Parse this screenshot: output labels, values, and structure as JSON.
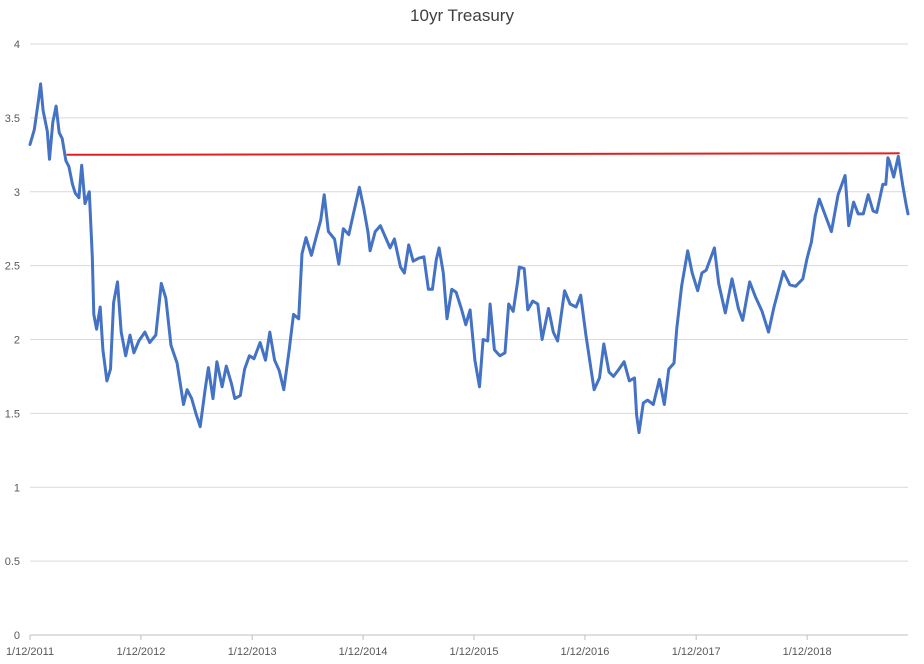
{
  "chart_data": {
    "type": "line",
    "title": "10yr Treasury",
    "xlabel": "",
    "ylabel": "",
    "x_ticks": [
      "1/12/2011",
      "1/12/2012",
      "1/12/2013",
      "1/12/2014",
      "1/12/2015",
      "1/12/2016",
      "1/12/2017",
      "1/12/2018"
    ],
    "y_ticks": [
      "0",
      "0.5",
      "1",
      "1.5",
      "2",
      "2.5",
      "3",
      "3.5",
      "4"
    ],
    "ylim": [
      0,
      4
    ],
    "xlim": [
      "2011-01-12",
      "2018-12-10"
    ],
    "grid": "horizontal",
    "legend": "none",
    "series": [
      {
        "color": "#4472C4",
        "points": [
          [
            "2011-01-12",
            3.32
          ],
          [
            "2011-01-26",
            3.42
          ],
          [
            "2011-02-09",
            3.62
          ],
          [
            "2011-02-16",
            3.73
          ],
          [
            "2011-02-24",
            3.55
          ],
          [
            "2011-03-10",
            3.41
          ],
          [
            "2011-03-17",
            3.22
          ],
          [
            "2011-03-28",
            3.47
          ],
          [
            "2011-04-08",
            3.58
          ],
          [
            "2011-04-18",
            3.4
          ],
          [
            "2011-04-28",
            3.36
          ],
          [
            "2011-05-10",
            3.21
          ],
          [
            "2011-05-20",
            3.17
          ],
          [
            "2011-06-01",
            3.05
          ],
          [
            "2011-06-10",
            2.99
          ],
          [
            "2011-06-22",
            2.96
          ],
          [
            "2011-07-01",
            3.18
          ],
          [
            "2011-07-12",
            2.92
          ],
          [
            "2011-07-26",
            3.0
          ],
          [
            "2011-08-05",
            2.56
          ],
          [
            "2011-08-10",
            2.17
          ],
          [
            "2011-08-19",
            2.07
          ],
          [
            "2011-08-31",
            2.22
          ],
          [
            "2011-09-09",
            1.93
          ],
          [
            "2011-09-22",
            1.72
          ],
          [
            "2011-10-04",
            1.8
          ],
          [
            "2011-10-14",
            2.25
          ],
          [
            "2011-10-27",
            2.39
          ],
          [
            "2011-11-08",
            2.05
          ],
          [
            "2011-11-23",
            1.89
          ],
          [
            "2011-12-07",
            2.03
          ],
          [
            "2011-12-20",
            1.91
          ],
          [
            "2012-01-05",
            1.99
          ],
          [
            "2012-01-25",
            2.05
          ],
          [
            "2012-02-10",
            1.98
          ],
          [
            "2012-03-01",
            2.03
          ],
          [
            "2012-03-19",
            2.38
          ],
          [
            "2012-04-03",
            2.28
          ],
          [
            "2012-04-20",
            1.96
          ],
          [
            "2012-05-10",
            1.84
          ],
          [
            "2012-05-31",
            1.56
          ],
          [
            "2012-06-12",
            1.66
          ],
          [
            "2012-06-27",
            1.6
          ],
          [
            "2012-07-11",
            1.5
          ],
          [
            "2012-07-25",
            1.41
          ],
          [
            "2012-08-10",
            1.66
          ],
          [
            "2012-08-21",
            1.81
          ],
          [
            "2012-09-05",
            1.6
          ],
          [
            "2012-09-18",
            1.85
          ],
          [
            "2012-10-05",
            1.68
          ],
          [
            "2012-10-19",
            1.82
          ],
          [
            "2012-11-05",
            1.7
          ],
          [
            "2012-11-16",
            1.6
          ],
          [
            "2012-12-04",
            1.62
          ],
          [
            "2012-12-18",
            1.8
          ],
          [
            "2013-01-03",
            1.89
          ],
          [
            "2013-01-18",
            1.87
          ],
          [
            "2013-02-07",
            1.98
          ],
          [
            "2013-02-25",
            1.86
          ],
          [
            "2013-03-11",
            2.05
          ],
          [
            "2013-03-27",
            1.86
          ],
          [
            "2013-04-11",
            1.79
          ],
          [
            "2013-04-26",
            1.66
          ],
          [
            "2013-05-14",
            1.93
          ],
          [
            "2013-05-28",
            2.17
          ],
          [
            "2013-06-14",
            2.14
          ],
          [
            "2013-06-25",
            2.58
          ],
          [
            "2013-07-08",
            2.69
          ],
          [
            "2013-07-26",
            2.57
          ],
          [
            "2013-08-14",
            2.72
          ],
          [
            "2013-08-26",
            2.81
          ],
          [
            "2013-09-06",
            2.98
          ],
          [
            "2013-09-20",
            2.73
          ],
          [
            "2013-10-10",
            2.68
          ],
          [
            "2013-10-24",
            2.51
          ],
          [
            "2013-11-08",
            2.75
          ],
          [
            "2013-11-26",
            2.71
          ],
          [
            "2013-12-12",
            2.86
          ],
          [
            "2013-12-31",
            3.03
          ],
          [
            "2014-01-14",
            2.89
          ],
          [
            "2014-01-28",
            2.73
          ],
          [
            "2014-02-04",
            2.6
          ],
          [
            "2014-02-21",
            2.73
          ],
          [
            "2014-03-10",
            2.77
          ],
          [
            "2014-03-27",
            2.69
          ],
          [
            "2014-04-11",
            2.62
          ],
          [
            "2014-04-25",
            2.68
          ],
          [
            "2014-05-15",
            2.49
          ],
          [
            "2014-05-28",
            2.45
          ],
          [
            "2014-06-11",
            2.64
          ],
          [
            "2014-06-26",
            2.53
          ],
          [
            "2014-07-14",
            2.55
          ],
          [
            "2014-07-31",
            2.56
          ],
          [
            "2014-08-15",
            2.34
          ],
          [
            "2014-08-28",
            2.34
          ],
          [
            "2014-09-10",
            2.54
          ],
          [
            "2014-09-19",
            2.62
          ],
          [
            "2014-10-03",
            2.45
          ],
          [
            "2014-10-15",
            2.14
          ],
          [
            "2014-10-31",
            2.34
          ],
          [
            "2014-11-14",
            2.32
          ],
          [
            "2014-12-01",
            2.21
          ],
          [
            "2014-12-16",
            2.1
          ],
          [
            "2014-12-30",
            2.2
          ],
          [
            "2015-01-15",
            1.86
          ],
          [
            "2015-01-30",
            1.68
          ],
          [
            "2015-02-11",
            2.0
          ],
          [
            "2015-02-26",
            1.99
          ],
          [
            "2015-03-06",
            2.24
          ],
          [
            "2015-03-20",
            1.93
          ],
          [
            "2015-04-07",
            1.89
          ],
          [
            "2015-04-24",
            1.91
          ],
          [
            "2015-05-06",
            2.24
          ],
          [
            "2015-05-21",
            2.19
          ],
          [
            "2015-06-05",
            2.4
          ],
          [
            "2015-06-10",
            2.49
          ],
          [
            "2015-06-26",
            2.48
          ],
          [
            "2015-07-08",
            2.2
          ],
          [
            "2015-07-24",
            2.26
          ],
          [
            "2015-08-10",
            2.24
          ],
          [
            "2015-08-24",
            2.0
          ],
          [
            "2015-09-14",
            2.21
          ],
          [
            "2015-09-30",
            2.05
          ],
          [
            "2015-10-14",
            1.99
          ],
          [
            "2015-11-06",
            2.33
          ],
          [
            "2015-11-24",
            2.24
          ],
          [
            "2015-12-14",
            2.22
          ],
          [
            "2015-12-29",
            2.3
          ],
          [
            "2016-01-15",
            2.03
          ],
          [
            "2016-02-11",
            1.66
          ],
          [
            "2016-02-29",
            1.74
          ],
          [
            "2016-03-14",
            1.97
          ],
          [
            "2016-03-31",
            1.78
          ],
          [
            "2016-04-15",
            1.75
          ],
          [
            "2016-05-03",
            1.8
          ],
          [
            "2016-05-20",
            1.85
          ],
          [
            "2016-06-06",
            1.72
          ],
          [
            "2016-06-23",
            1.74
          ],
          [
            "2016-06-30",
            1.49
          ],
          [
            "2016-07-08",
            1.37
          ],
          [
            "2016-07-22",
            1.57
          ],
          [
            "2016-08-05",
            1.59
          ],
          [
            "2016-08-24",
            1.56
          ],
          [
            "2016-09-13",
            1.73
          ],
          [
            "2016-09-29",
            1.56
          ],
          [
            "2016-10-14",
            1.8
          ],
          [
            "2016-10-31",
            1.84
          ],
          [
            "2016-11-09",
            2.07
          ],
          [
            "2016-11-25",
            2.36
          ],
          [
            "2016-12-15",
            2.6
          ],
          [
            "2016-12-30",
            2.45
          ],
          [
            "2017-01-17",
            2.33
          ],
          [
            "2017-01-31",
            2.45
          ],
          [
            "2017-02-14",
            2.47
          ],
          [
            "2017-03-13",
            2.62
          ],
          [
            "2017-03-27",
            2.38
          ],
          [
            "2017-04-18",
            2.18
          ],
          [
            "2017-05-10",
            2.41
          ],
          [
            "2017-05-31",
            2.21
          ],
          [
            "2017-06-14",
            2.13
          ],
          [
            "2017-06-30",
            2.31
          ],
          [
            "2017-07-07",
            2.39
          ],
          [
            "2017-07-26",
            2.29
          ],
          [
            "2017-08-17",
            2.19
          ],
          [
            "2017-09-07",
            2.05
          ],
          [
            "2017-09-25",
            2.22
          ],
          [
            "2017-10-26",
            2.46
          ],
          [
            "2017-11-16",
            2.37
          ],
          [
            "2017-12-05",
            2.36
          ],
          [
            "2017-12-29",
            2.41
          ],
          [
            "2018-01-12",
            2.55
          ],
          [
            "2018-01-26",
            2.66
          ],
          [
            "2018-02-08",
            2.84
          ],
          [
            "2018-02-21",
            2.95
          ],
          [
            "2018-03-13",
            2.84
          ],
          [
            "2018-04-02",
            2.73
          ],
          [
            "2018-04-24",
            2.98
          ],
          [
            "2018-05-17",
            3.11
          ],
          [
            "2018-05-29",
            2.77
          ],
          [
            "2018-06-14",
            2.93
          ],
          [
            "2018-06-29",
            2.85
          ],
          [
            "2018-07-16",
            2.85
          ],
          [
            "2018-08-01",
            2.98
          ],
          [
            "2018-08-17",
            2.87
          ],
          [
            "2018-08-29",
            2.86
          ],
          [
            "2018-09-18",
            3.05
          ],
          [
            "2018-09-28",
            3.05
          ],
          [
            "2018-10-05",
            3.23
          ],
          [
            "2018-10-09",
            3.21
          ],
          [
            "2018-10-24",
            3.1
          ],
          [
            "2018-11-08",
            3.24
          ],
          [
            "2018-11-23",
            3.04
          ],
          [
            "2018-12-04",
            2.91
          ],
          [
            "2018-12-10",
            2.85
          ]
        ]
      },
      {
        "color": "#E02020",
        "points": [
          [
            "2011-05-15",
            3.25
          ],
          [
            "2018-11-10",
            3.26
          ]
        ]
      }
    ]
  }
}
